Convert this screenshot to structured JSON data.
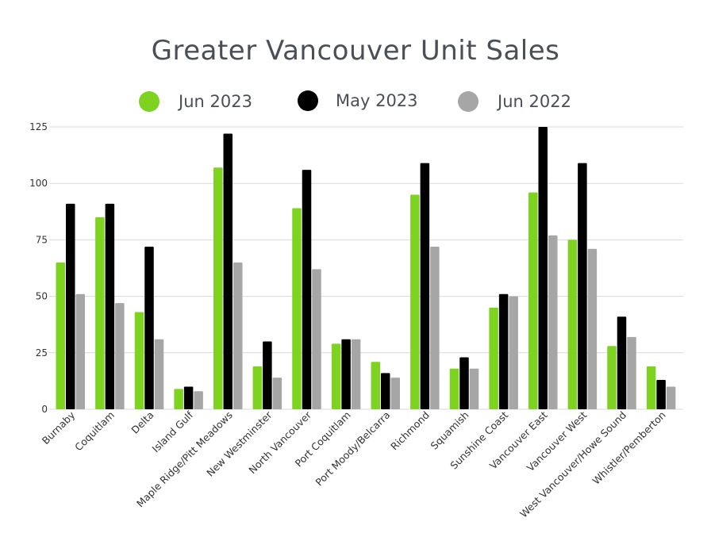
{
  "chart_data": {
    "type": "bar",
    "title": "Greater Vancouver Unit Sales",
    "xlabel": "",
    "ylabel": "",
    "ylim": [
      0,
      125
    ],
    "yticks": [
      0,
      25,
      50,
      75,
      100,
      125
    ],
    "grid": true,
    "legend_position": "top",
    "categories": [
      "Burnaby",
      "Coquitlam",
      "Delta",
      "Island Gulf",
      "Maple Ridge/Pitt Meadows",
      "New Westminster",
      "North Vancouver",
      "Port Coquitlam",
      "Port Moody/Belcarra",
      "Richmond",
      "Squamish",
      "Sunshine Coast",
      "Vancouver East",
      "Vancouver West",
      "West Vancouver/Howe Sound",
      "Whistler/Pemberton"
    ],
    "series": [
      {
        "name": "Jun 2023",
        "color": "#7ed321",
        "values": [
          65,
          85,
          43,
          9,
          107,
          19,
          89,
          29,
          21,
          95,
          18,
          45,
          96,
          75,
          28,
          19
        ]
      },
      {
        "name": "May 2023",
        "color": "#000000",
        "values": [
          91,
          91,
          72,
          10,
          122,
          30,
          106,
          31,
          16,
          109,
          23,
          51,
          125,
          109,
          41,
          13
        ]
      },
      {
        "name": "Jun 2022",
        "color": "#a6a6a6",
        "values": [
          51,
          47,
          31,
          8,
          65,
          14,
          62,
          31,
          14,
          72,
          18,
          50,
          77,
          71,
          32,
          10
        ]
      }
    ]
  }
}
